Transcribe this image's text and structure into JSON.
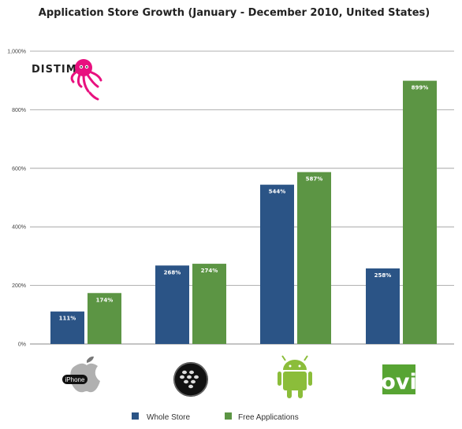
{
  "chart_data": {
    "type": "bar",
    "title": "Application Store Growth (January - December 2010, United States)",
    "categories": [
      "iPhone",
      "BlackBerry",
      "Android",
      "Ovi"
    ],
    "series": [
      {
        "name": "Whole Store",
        "values": [
          111,
          268,
          544,
          258
        ],
        "color": "#2b5486"
      },
      {
        "name": "Free Applications",
        "values": [
          174,
          274,
          587,
          899
        ],
        "color": "#5c9544"
      }
    ],
    "ylim": [
      0,
      1000
    ],
    "yticks": [
      0,
      200,
      400,
      600,
      800,
      1000
    ],
    "ytick_labels": [
      "0%",
      "200%",
      "400%",
      "600%",
      "800%",
      "1,000%"
    ],
    "grid": true,
    "legend": "bottom-center"
  },
  "brand": {
    "name": "DISTIMO",
    "color": "#e8117f",
    "logo_icon": "octopus-icon"
  },
  "category_icons": [
    "apple-iphone-icon",
    "blackberry-icon",
    "android-icon",
    "ovi-icon"
  ],
  "category_icon_texts": {
    "iphone": "iPhone",
    "ovi": "ovi"
  }
}
